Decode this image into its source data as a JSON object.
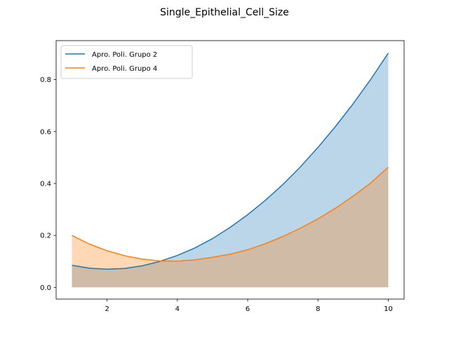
{
  "chart_data": {
    "type": "area",
    "title": "Single_Epithelial_Cell_Size",
    "xlabel": "",
    "ylabel": "",
    "xlim": [
      0.55,
      10.45
    ],
    "ylim": [
      -0.045,
      0.95
    ],
    "xticks": [
      2,
      4,
      6,
      8,
      10
    ],
    "yticks": [
      0.0,
      0.2,
      0.4,
      0.6,
      0.8
    ],
    "ytick_labels": [
      "0.0",
      "0.2",
      "0.4",
      "0.6",
      "0.8"
    ],
    "legend_position": "top-left",
    "series": [
      {
        "name": "Apro. Poli. Grupo 2",
        "color": "#1f77b4",
        "fill_color": "#1f77b4",
        "fill_opacity": 0.3,
        "x": [
          1,
          1.5,
          2,
          2.5,
          3,
          3.5,
          4,
          4.5,
          5,
          5.5,
          6,
          6.5,
          7,
          7.5,
          8,
          8.5,
          9,
          9.5,
          10
        ],
        "y": [
          0.085,
          0.074,
          0.07,
          0.073,
          0.083,
          0.1,
          0.123,
          0.152,
          0.188,
          0.231,
          0.28,
          0.335,
          0.396,
          0.464,
          0.539,
          0.62,
          0.707,
          0.801,
          0.902
        ]
      },
      {
        "name": "Apro. Poli. Grupo 4",
        "color": "#ff7f0e",
        "fill_color": "#ff7f0e",
        "fill_opacity": 0.3,
        "x": [
          1,
          1.5,
          2,
          2.5,
          3,
          3.5,
          4,
          4.5,
          5,
          5.5,
          6,
          6.5,
          7,
          7.5,
          8,
          8.5,
          9,
          9.5,
          10
        ],
        "y": [
          0.2,
          0.167,
          0.141,
          0.122,
          0.109,
          0.102,
          0.101,
          0.106,
          0.116,
          0.128,
          0.145,
          0.168,
          0.196,
          0.228,
          0.264,
          0.305,
          0.351,
          0.402,
          0.463
        ]
      }
    ]
  }
}
